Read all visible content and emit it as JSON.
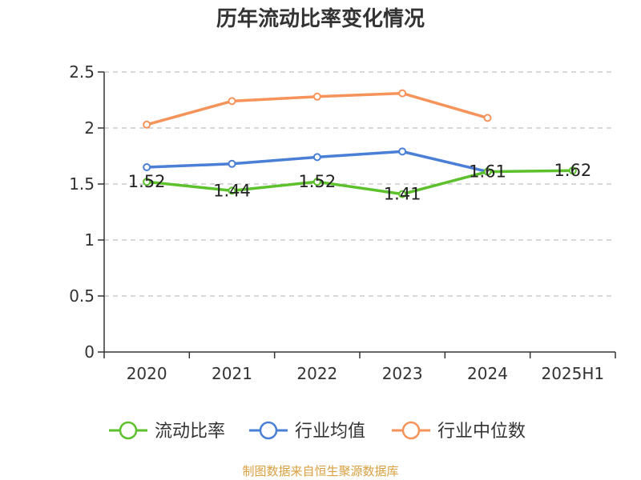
{
  "chart_data": {
    "type": "line",
    "title": "历年流动比率变化情况",
    "categories": [
      "2020",
      "2021",
      "2022",
      "2023",
      "2024",
      "2025H1"
    ],
    "ylim": [
      0,
      2.5
    ],
    "yticks": [
      "0",
      "0.5",
      "1",
      "1.5",
      "2",
      "2.5"
    ],
    "grid": true,
    "legend_position": "bottom",
    "series": [
      {
        "name": "流动比率",
        "color": "#5cc12c",
        "values": [
          1.52,
          1.44,
          1.52,
          1.41,
          1.61,
          1.62
        ],
        "labels": [
          "1.52",
          "1.44",
          "1.52",
          "1.41",
          "1.61",
          "1.62"
        ]
      },
      {
        "name": "行业均值",
        "color": "#4a7fd6",
        "values": [
          1.65,
          1.68,
          1.74,
          1.79,
          1.61,
          null
        ]
      },
      {
        "name": "行业中位数",
        "color": "#f5935a",
        "values": [
          2.03,
          2.24,
          2.28,
          2.31,
          2.09,
          null
        ]
      }
    ]
  },
  "footer": {
    "source": "制图数据来自恒生聚源数据库"
  }
}
